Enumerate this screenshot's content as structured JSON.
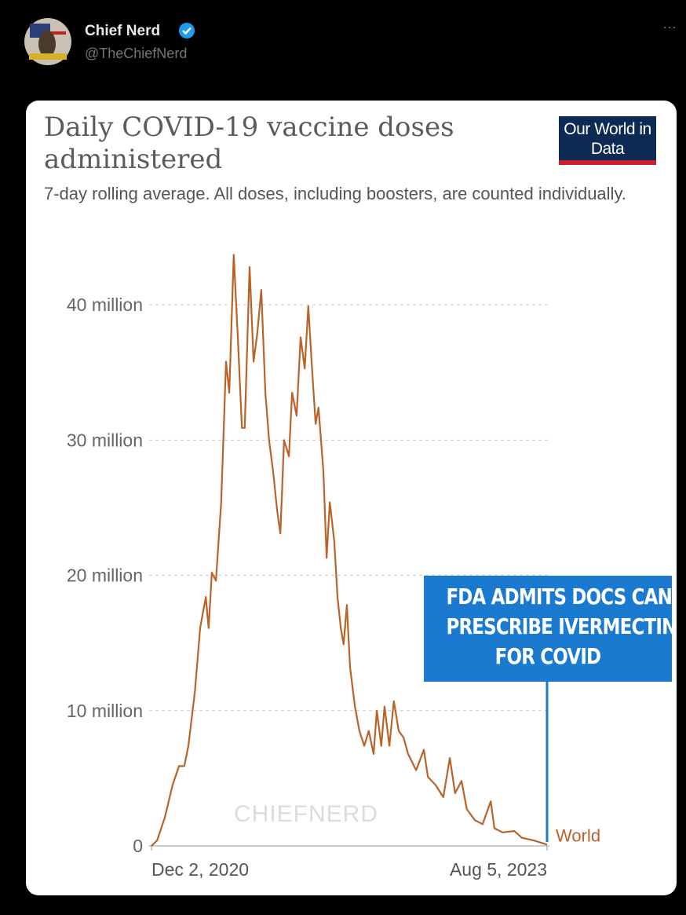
{
  "tweet": {
    "author": "Chief Nerd",
    "handle": "@TheChiefNerd",
    "more": "···"
  },
  "chart_data": {
    "type": "line",
    "title": "Daily COVID-19 vaccine doses administered",
    "subtitle": "7-day rolling average. All doses, including boosters, are counted individually.",
    "source_logo": "Our World in Data",
    "watermark": "CHIEFNERD",
    "annotation": [
      "FDA ADMITS DOCS CAN",
      "PRESCRIBE IVERMECTIN",
      "FOR COVID"
    ],
    "x": [
      "2020-12-02",
      "2020-12-16",
      "2021-01-04",
      "2021-01-23",
      "2021-02-08",
      "2021-02-21",
      "2021-03-03",
      "2021-03-19",
      "2021-04-01",
      "2021-04-15",
      "2021-04-22",
      "2021-04-30",
      "2021-05-10",
      "2021-05-23",
      "2021-06-04",
      "2021-06-12",
      "2021-06-23",
      "2021-07-03",
      "2021-07-13",
      "2021-07-20",
      "2021-08-01",
      "2021-08-11",
      "2021-08-20",
      "2021-08-30",
      "2021-09-09",
      "2021-09-18",
      "2021-09-28",
      "2021-10-08",
      "2021-10-16",
      "2021-10-25",
      "2021-11-06",
      "2021-11-14",
      "2021-11-25",
      "2021-12-05",
      "2021-12-15",
      "2021-12-24",
      "2022-01-01",
      "2022-01-11",
      "2022-01-18",
      "2022-01-30",
      "2022-02-07",
      "2022-02-15",
      "2022-02-26",
      "2022-03-06",
      "2022-03-14",
      "2022-03-21",
      "2022-03-29",
      "2022-04-06",
      "2022-04-18",
      "2022-04-29",
      "2022-05-11",
      "2022-05-22",
      "2022-06-03",
      "2022-06-11",
      "2022-06-22",
      "2022-06-30",
      "2022-07-12",
      "2022-07-23",
      "2022-08-04",
      "2022-08-16",
      "2022-08-27",
      "2022-09-16",
      "2022-10-05",
      "2022-10-15",
      "2022-11-03",
      "2022-11-22",
      "2022-12-08",
      "2022-12-21",
      "2023-01-06",
      "2023-01-19",
      "2023-02-08",
      "2023-02-27",
      "2023-03-19",
      "2023-03-28",
      "2023-04-17",
      "2023-05-16",
      "2023-06-04",
      "2023-07-03",
      "2023-08-05"
    ],
    "series": [
      {
        "name": "World",
        "color": "#b9632a",
        "values": [
          0,
          400000,
          2100000,
          4500000,
          5900000,
          5900000,
          7400000,
          11400000,
          16100000,
          18400000,
          16100000,
          20200000,
          19600000,
          25400000,
          35800000,
          33500000,
          43700000,
          37600000,
          30900000,
          30900000,
          42800000,
          35800000,
          37900000,
          41100000,
          33500000,
          30000000,
          27700000,
          24800000,
          23100000,
          30000000,
          28800000,
          33500000,
          31800000,
          37600000,
          35300000,
          39900000,
          35800000,
          31200000,
          32400000,
          27700000,
          21300000,
          25400000,
          22500000,
          18400000,
          16100000,
          14900000,
          17800000,
          13200000,
          10300000,
          8500000,
          7400000,
          8500000,
          6800000,
          10000000,
          7400000,
          10300000,
          7400000,
          10700000,
          8500000,
          8000000,
          6800000,
          5600000,
          7100000,
          5100000,
          4500000,
          3600000,
          6500000,
          3900000,
          4800000,
          2700000,
          1900000,
          1600000,
          3300000,
          1300000,
          1000000,
          1100000,
          600000,
          400000,
          100000
        ]
      }
    ],
    "xlim": [
      "2020-12-02",
      "2023-08-05"
    ],
    "xticks": [
      {
        "value": "2020-12-02",
        "label": "Dec 2, 2020"
      },
      {
        "value": "2023-08-05",
        "label": "Aug 5, 2023"
      }
    ],
    "ylim": [
      0,
      45000000
    ],
    "yticks": [
      0,
      {
        "value": 10000000,
        "label": "10 million"
      },
      {
        "value": 20000000,
        "label": "20 million"
      },
      {
        "value": 30000000,
        "label": "30 million"
      },
      {
        "value": 40000000,
        "label": "40 million"
      }
    ],
    "grid": true
  }
}
